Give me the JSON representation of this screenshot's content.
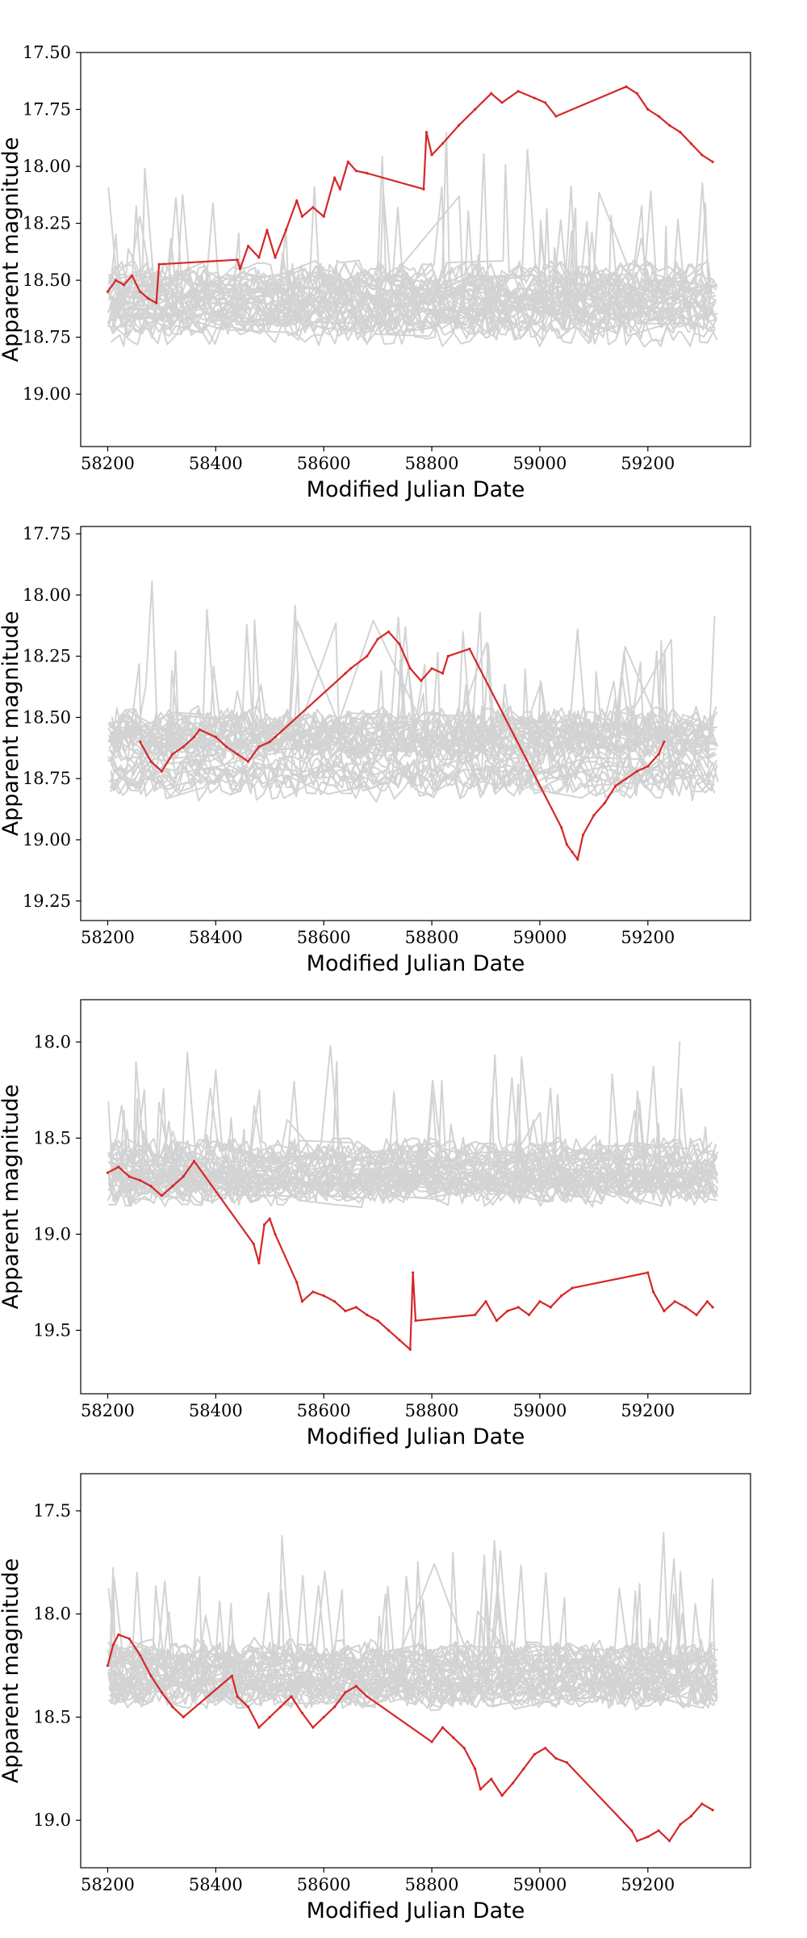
{
  "chart_data": [
    {
      "type": "line",
      "xlabel": "Modified Julian Date",
      "ylabel": "Apparent magnitude",
      "xlim": [
        58150,
        59390
      ],
      "ylim": [
        19.23,
        17.5
      ],
      "y_inverted": true,
      "xticks": [
        58200,
        58400,
        58600,
        58800,
        59000,
        59200
      ],
      "xtick_labels": [
        "58200",
        "58400",
        "58600",
        "58800",
        "59000",
        "59200"
      ],
      "yticks": [
        17.5,
        17.75,
        18.0,
        18.25,
        18.5,
        18.75,
        19.0
      ],
      "ytick_labels": [
        "17.50",
        "17.75",
        "18.00",
        "18.25",
        "18.50",
        "18.75",
        "19.00"
      ],
      "grid": false,
      "background_series": {
        "color": "#d3d3d3",
        "count": 40,
        "center": 18.6,
        "spread": 0.14,
        "noise": 0.06,
        "x_range": [
          58200,
          59330
        ]
      },
      "series": [
        {
          "color": "#d62728",
          "x": [
            58200,
            58215,
            58230,
            58245,
            58260,
            58275,
            58290,
            58295,
            58440,
            58445,
            58460,
            58480,
            58495,
            58510,
            58530,
            58550,
            58560,
            58580,
            58600,
            58620,
            58630,
            58645,
            58660,
            58680,
            58785,
            58790,
            58800,
            58820,
            58850,
            58880,
            58910,
            58930,
            58960,
            58990,
            59010,
            59030,
            59160,
            59180,
            59200,
            59220,
            59240,
            59260,
            59280,
            59300,
            59320
          ],
          "y": [
            18.55,
            18.5,
            18.52,
            18.48,
            18.55,
            18.58,
            18.6,
            18.43,
            18.41,
            18.45,
            18.35,
            18.4,
            18.28,
            18.4,
            18.28,
            18.15,
            18.22,
            18.18,
            18.22,
            18.05,
            18.1,
            17.98,
            18.02,
            18.03,
            18.1,
            17.85,
            17.95,
            17.9,
            17.82,
            17.75,
            17.68,
            17.72,
            17.67,
            17.7,
            17.72,
            17.78,
            17.65,
            17.68,
            17.75,
            17.78,
            17.82,
            17.85,
            17.9,
            17.95,
            17.98
          ]
        }
      ]
    },
    {
      "type": "line",
      "xlabel": "Modified Julian Date",
      "ylabel": "Apparent magnitude",
      "xlim": [
        58150,
        59390
      ],
      "ylim": [
        19.33,
        17.72
      ],
      "y_inverted": true,
      "xticks": [
        58200,
        58400,
        58600,
        58800,
        59000,
        59200
      ],
      "xtick_labels": [
        "58200",
        "58400",
        "58600",
        "58800",
        "59000",
        "59200"
      ],
      "yticks": [
        17.75,
        18.0,
        18.25,
        18.5,
        18.75,
        19.0,
        19.25
      ],
      "ytick_labels": [
        "17.75",
        "18.00",
        "18.25",
        "18.50",
        "18.75",
        "19.00",
        "19.25"
      ],
      "grid": false,
      "background_series": {
        "color": "#d3d3d3",
        "count": 40,
        "center": 18.65,
        "spread": 0.14,
        "noise": 0.06,
        "x_range": [
          58200,
          59330
        ]
      },
      "series": [
        {
          "color": "#d62728",
          "x": [
            58260,
            58280,
            58300,
            58320,
            58340,
            58360,
            58370,
            58400,
            58420,
            58440,
            58460,
            58480,
            58500,
            58510,
            58640,
            58650,
            58680,
            58700,
            58720,
            58740,
            58760,
            58780,
            58800,
            58820,
            58830,
            58870,
            59040,
            59050,
            59060,
            59070,
            59080,
            59100,
            59120,
            59140,
            59160,
            59180,
            59200,
            59220,
            59230
          ],
          "y": [
            18.6,
            18.68,
            18.72,
            18.65,
            18.62,
            18.58,
            18.55,
            18.58,
            18.62,
            18.65,
            18.68,
            18.62,
            18.6,
            18.58,
            18.32,
            18.3,
            18.25,
            18.18,
            18.15,
            18.2,
            18.3,
            18.35,
            18.3,
            18.32,
            18.25,
            18.22,
            18.95,
            19.02,
            19.05,
            19.08,
            18.98,
            18.9,
            18.85,
            18.78,
            18.75,
            18.72,
            18.7,
            18.65,
            18.6
          ]
        }
      ]
    },
    {
      "type": "line",
      "xlabel": "Modified Julian Date",
      "ylabel": "Apparent magnitude",
      "xlim": [
        58150,
        59390
      ],
      "ylim": [
        19.83,
        17.78
      ],
      "y_inverted": true,
      "xticks": [
        58200,
        58400,
        58600,
        58800,
        59000,
        59200
      ],
      "xtick_labels": [
        "58200",
        "58400",
        "58600",
        "58800",
        "59000",
        "59200"
      ],
      "yticks": [
        18.0,
        18.5,
        19.0,
        19.5
      ],
      "ytick_labels": [
        "18.0",
        "18.5",
        "19.0",
        "19.5"
      ],
      "grid": false,
      "background_series": {
        "color": "#d3d3d3",
        "count": 40,
        "center": 18.68,
        "spread": 0.12,
        "noise": 0.07,
        "x_range": [
          58200,
          59330
        ]
      },
      "series": [
        {
          "color": "#d62728",
          "x": [
            58200,
            58220,
            58240,
            58260,
            58280,
            58300,
            58320,
            58340,
            58360,
            58470,
            58480,
            58490,
            58500,
            58510,
            58550,
            58560,
            58580,
            58600,
            58620,
            58640,
            58660,
            58680,
            58700,
            58720,
            58740,
            58760,
            58765,
            58770,
            58880,
            58900,
            58920,
            58940,
            58960,
            58980,
            59000,
            59020,
            59040,
            59060,
            59200,
            59210,
            59230,
            59250,
            59270,
            59290,
            59310,
            59320
          ],
          "y": [
            18.68,
            18.65,
            18.7,
            18.72,
            18.75,
            18.8,
            18.75,
            18.7,
            18.62,
            19.05,
            19.15,
            18.95,
            18.92,
            19.0,
            19.25,
            19.35,
            19.3,
            19.32,
            19.35,
            19.4,
            19.38,
            19.42,
            19.45,
            19.5,
            19.55,
            19.6,
            19.2,
            19.45,
            19.42,
            19.35,
            19.45,
            19.4,
            19.38,
            19.42,
            19.35,
            19.38,
            19.32,
            19.28,
            19.2,
            19.3,
            19.4,
            19.35,
            19.38,
            19.42,
            19.35,
            19.38
          ]
        }
      ]
    },
    {
      "type": "line",
      "xlabel": "Modified Julian Date",
      "ylabel": "Apparent magnitude",
      "xlim": [
        58150,
        59390
      ],
      "ylim": [
        19.23,
        17.32
      ],
      "y_inverted": true,
      "xticks": [
        58200,
        58400,
        58600,
        58800,
        59000,
        59200
      ],
      "xtick_labels": [
        "58200",
        "58400",
        "58600",
        "58800",
        "59000",
        "59200"
      ],
      "yticks": [
        17.5,
        18.0,
        18.5,
        19.0
      ],
      "ytick_labels": [
        "17.5",
        "18.0",
        "18.5",
        "19.0"
      ],
      "grid": false,
      "background_series": {
        "color": "#d3d3d3",
        "count": 40,
        "center": 18.28,
        "spread": 0.12,
        "noise": 0.07,
        "x_range": [
          58200,
          59330
        ]
      },
      "series": [
        {
          "color": "#d62728",
          "x": [
            58200,
            58210,
            58220,
            58240,
            58260,
            58280,
            58300,
            58320,
            58340,
            58430,
            58440,
            58460,
            58480,
            58500,
            58520,
            58540,
            58560,
            58580,
            58600,
            58620,
            58640,
            58660,
            58680,
            58800,
            58820,
            58840,
            58860,
            58880,
            58890,
            58910,
            58930,
            58950,
            58970,
            58990,
            59010,
            59030,
            59050,
            59170,
            59180,
            59200,
            59220,
            59240,
            59260,
            59280,
            59300,
            59320
          ],
          "y": [
            18.25,
            18.15,
            18.1,
            18.12,
            18.2,
            18.3,
            18.38,
            18.45,
            18.5,
            18.3,
            18.4,
            18.45,
            18.55,
            18.5,
            18.45,
            18.4,
            18.48,
            18.55,
            18.5,
            18.45,
            18.38,
            18.35,
            18.4,
            18.62,
            18.55,
            18.6,
            18.65,
            18.75,
            18.85,
            18.8,
            18.88,
            18.82,
            18.75,
            18.68,
            18.65,
            18.7,
            18.72,
            19.05,
            19.1,
            19.08,
            19.05,
            19.1,
            19.02,
            18.98,
            18.92,
            18.95
          ]
        }
      ]
    }
  ]
}
